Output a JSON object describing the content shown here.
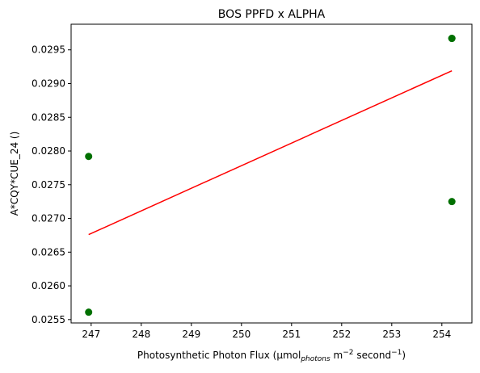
{
  "chart_data": {
    "type": "scatter",
    "title": "BOS PPFD x ALPHA",
    "xlabel": {
      "prefix": "Photosynthetic Photon Flux (µmol",
      "sub1": "photons",
      "middle": " m",
      "sup1": "−2",
      "middle2": " second",
      "sup2": "−1",
      "suffix": ")"
    },
    "ylabel": "A*CQY*CUE_24 ()",
    "xlim": [
      246.6,
      254.6
    ],
    "ylim": [
      0.02545,
      0.02988
    ],
    "x_ticks": [
      247,
      248,
      249,
      250,
      251,
      252,
      253,
      254
    ],
    "y_ticks": [
      0.0255,
      0.026,
      0.0265,
      0.027,
      0.0275,
      0.028,
      0.0285,
      0.029,
      0.0295
    ],
    "y_tick_decimals": 4,
    "grid": false,
    "colors": {
      "points": "#007000",
      "fit_line": "#ff0000"
    },
    "points": [
      {
        "x": 246.95,
        "y": 0.02792
      },
      {
        "x": 246.95,
        "y": 0.02561
      },
      {
        "x": 254.2,
        "y": 0.02967
      },
      {
        "x": 254.2,
        "y": 0.02967
      },
      {
        "x": 254.2,
        "y": 0.02725
      }
    ],
    "fit_line": [
      {
        "x": 246.95,
        "y": 0.02676
      },
      {
        "x": 254.2,
        "y": 0.02919
      }
    ]
  }
}
